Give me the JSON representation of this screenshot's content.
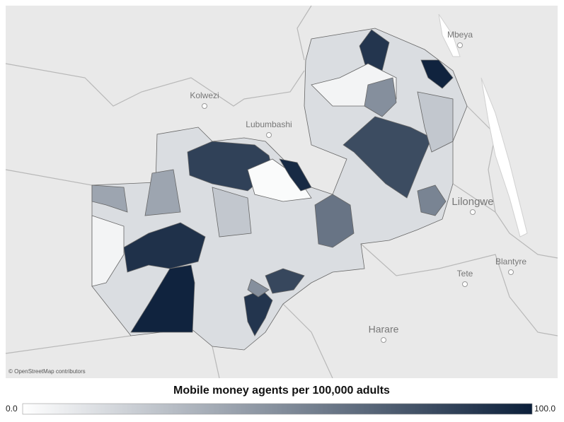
{
  "map": {
    "cities": [
      "Mbeya",
      "Kolwezi",
      "Lubumbashi",
      "Lilongwe",
      "Blantyre",
      "Tete",
      "Harare"
    ],
    "attribution": "© OpenStreetMap contributors",
    "district_values": [
      15,
      85,
      2,
      95,
      92,
      98,
      80,
      98,
      90,
      62,
      55,
      90,
      82,
      40,
      40,
      5,
      25,
      25,
      5,
      50,
      50
    ]
  },
  "legend": {
    "title": "Mobile money agents per 100,000 adults",
    "min": {
      "value": 0,
      "label": "0.0"
    },
    "max": {
      "value": 100,
      "label": "100.0"
    },
    "low_color": "#ffffff",
    "high_color": "#0b1f3a"
  }
}
